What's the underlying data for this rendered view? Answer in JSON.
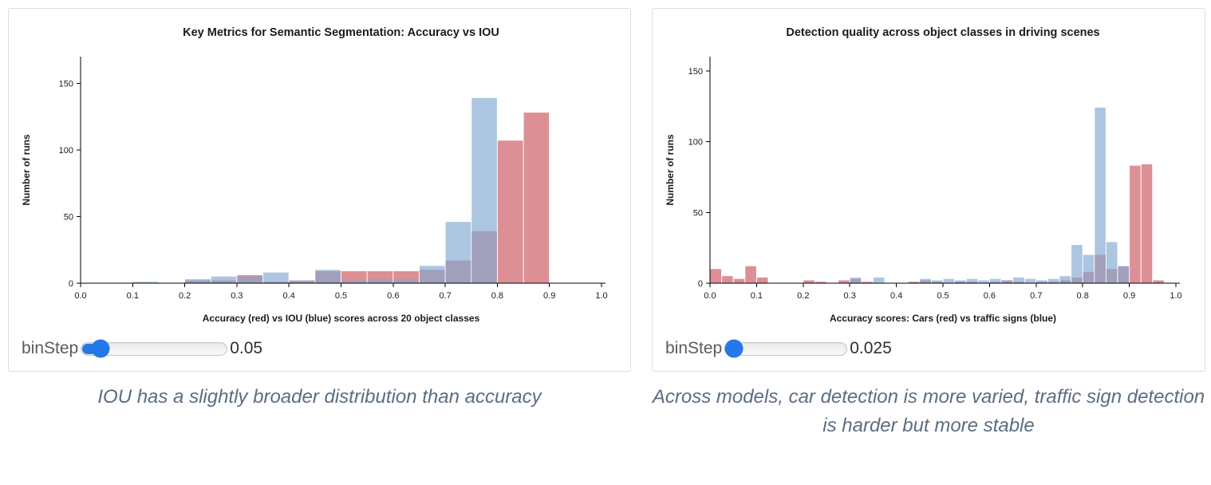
{
  "panels": [
    {
      "slider": {
        "label": "binStep",
        "value": "0.05"
      },
      "caption": "IOU has a slightly broader distribution than accuracy"
    },
    {
      "slider": {
        "label": "binStep",
        "value": "0.025"
      },
      "caption": "Across models, car detection is more varied, traffic sign detection is harder but more stable"
    }
  ],
  "chart_data": [
    {
      "type": "bar",
      "subtype": "layered-histogram",
      "title": "Key Metrics for Semantic Segmentation: Accuracy vs IOU",
      "xlabel": "Accuracy (red) vs IOU (blue) scores across 20 object classes",
      "ylabel": "Number of runs",
      "xlim": [
        0.0,
        1.0
      ],
      "ylim": [
        0,
        170
      ],
      "x_ticks": [
        "0.0",
        "0.1",
        "0.2",
        "0.3",
        "0.4",
        "0.5",
        "0.6",
        "0.7",
        "0.8",
        "0.9",
        "1.0"
      ],
      "y_ticks": [
        0,
        50,
        100,
        150
      ],
      "bin_step": 0.05,
      "grid": false,
      "legend": "none",
      "series": [
        {
          "name": "Accuracy (red)",
          "color": "#c9545c",
          "opacity": 0.65,
          "bins": [
            [
              0.2,
              2
            ],
            [
              0.25,
              2
            ],
            [
              0.3,
              6
            ],
            [
              0.35,
              1
            ],
            [
              0.4,
              2
            ],
            [
              0.45,
              9
            ],
            [
              0.5,
              9
            ],
            [
              0.55,
              9
            ],
            [
              0.6,
              9
            ],
            [
              0.65,
              10
            ],
            [
              0.7,
              17
            ],
            [
              0.75,
              39
            ],
            [
              0.8,
              107
            ],
            [
              0.85,
              128
            ]
          ]
        },
        {
          "name": "IOU (blue)",
          "color": "#7fa8d1",
          "opacity": 0.65,
          "bins": [
            [
              0.1,
              1
            ],
            [
              0.2,
              3
            ],
            [
              0.25,
              5
            ],
            [
              0.3,
              5
            ],
            [
              0.35,
              8
            ],
            [
              0.4,
              2
            ],
            [
              0.45,
              10
            ],
            [
              0.5,
              2
            ],
            [
              0.55,
              3
            ],
            [
              0.6,
              3
            ],
            [
              0.65,
              13
            ],
            [
              0.7,
              46
            ],
            [
              0.75,
              139
            ]
          ]
        }
      ]
    },
    {
      "type": "bar",
      "subtype": "layered-histogram",
      "title": "Detection quality across object classes in driving scenes",
      "xlabel": "Accuracy scores: Cars (red) vs traffic signs (blue)",
      "ylabel": "Number of runs",
      "xlim": [
        0.0,
        1.0
      ],
      "ylim": [
        0,
        160
      ],
      "x_ticks": [
        "0.0",
        "0.1",
        "0.2",
        "0.3",
        "0.4",
        "0.5",
        "0.6",
        "0.7",
        "0.8",
        "0.9",
        "1.0"
      ],
      "y_ticks": [
        0,
        50,
        100,
        150
      ],
      "bin_step": 0.025,
      "grid": false,
      "legend": "none",
      "series": [
        {
          "name": "Cars (red)",
          "color": "#c9545c",
          "opacity": 0.65,
          "bins": [
            [
              0.0,
              10
            ],
            [
              0.025,
              5
            ],
            [
              0.05,
              3
            ],
            [
              0.075,
              12
            ],
            [
              0.1,
              4
            ],
            [
              0.2,
              2
            ],
            [
              0.225,
              1
            ],
            [
              0.275,
              2
            ],
            [
              0.3,
              3
            ],
            [
              0.325,
              1
            ],
            [
              0.425,
              1
            ],
            [
              0.45,
              2
            ],
            [
              0.475,
              1
            ],
            [
              0.525,
              1
            ],
            [
              0.55,
              1
            ],
            [
              0.6,
              1
            ],
            [
              0.625,
              2
            ],
            [
              0.65,
              1
            ],
            [
              0.7,
              1
            ],
            [
              0.725,
              1
            ],
            [
              0.75,
              2
            ],
            [
              0.775,
              4
            ],
            [
              0.8,
              8
            ],
            [
              0.825,
              20
            ],
            [
              0.85,
              10
            ],
            [
              0.875,
              12
            ],
            [
              0.9,
              83
            ],
            [
              0.925,
              84
            ],
            [
              0.95,
              2
            ]
          ]
        },
        {
          "name": "Traffic signs (blue)",
          "color": "#7fa8d1",
          "opacity": 0.65,
          "bins": [
            [
              0.3,
              4
            ],
            [
              0.35,
              4
            ],
            [
              0.45,
              3
            ],
            [
              0.475,
              2
            ],
            [
              0.5,
              3
            ],
            [
              0.525,
              2
            ],
            [
              0.55,
              3
            ],
            [
              0.575,
              2
            ],
            [
              0.6,
              3
            ],
            [
              0.625,
              2
            ],
            [
              0.65,
              4
            ],
            [
              0.675,
              3
            ],
            [
              0.7,
              2
            ],
            [
              0.725,
              3
            ],
            [
              0.75,
              5
            ],
            [
              0.775,
              27
            ],
            [
              0.8,
              20
            ],
            [
              0.825,
              124
            ],
            [
              0.85,
              29
            ],
            [
              0.875,
              12
            ]
          ]
        }
      ]
    }
  ]
}
